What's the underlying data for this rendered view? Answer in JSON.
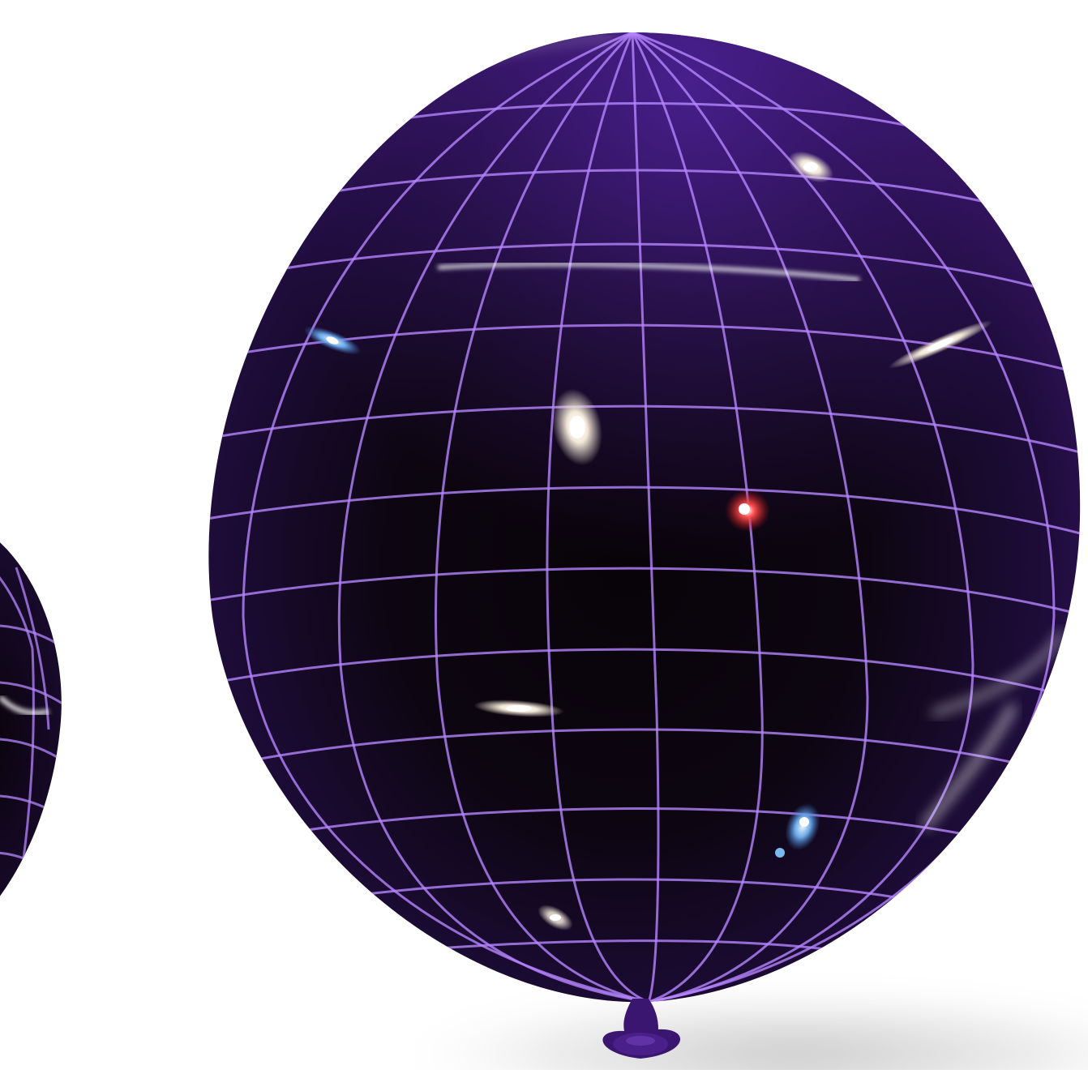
{
  "scene": {
    "background_color": "#ffffff",
    "balloons": [
      {
        "role": "partial-balloon-left",
        "color": "#3a1670",
        "grid_color": "#b585ff"
      },
      {
        "role": "main-balloon",
        "color": "#3a1670",
        "grid_color": "#b585ff"
      }
    ],
    "galaxies": [
      {
        "kind": "elliptical",
        "color": "#f1e6d6"
      },
      {
        "kind": "spiral-tilted",
        "color": "#f4efe6"
      },
      {
        "kind": "spiral-blue",
        "color": "#6aa8e6"
      },
      {
        "kind": "red-galaxy",
        "color": "#e02828"
      },
      {
        "kind": "edge-on",
        "color": "#f2ece1"
      },
      {
        "kind": "edge-on",
        "color": "#f2ece1"
      },
      {
        "kind": "spiral-blue",
        "color": "#7ab8f0"
      },
      {
        "kind": "spiral-small",
        "color": "#d9dde6"
      }
    ]
  }
}
